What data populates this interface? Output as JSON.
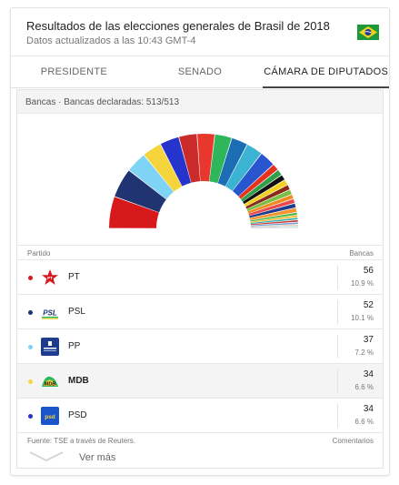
{
  "header": {
    "title": "Resultados de las elecciones generales de Brasil de 2018",
    "updated": "Datos actualizados a las 10:43 GMT-4"
  },
  "tabs": [
    {
      "label": "PRESIDENTE",
      "active": false
    },
    {
      "label": "SENADO",
      "active": false
    },
    {
      "label": "CÁMARA DE DIPUTADOS",
      "active": true
    }
  ],
  "section_label": "Bancas · Bancas declaradas: 513/513",
  "chart_data": {
    "type": "hemicycle",
    "total_seats": 513,
    "series": [
      {
        "seats": 56,
        "color": "#d7191c"
      },
      {
        "seats": 52,
        "color": "#1f3470"
      },
      {
        "seats": 37,
        "color": "#7fd3f4"
      },
      {
        "seats": 34,
        "color": "#f6d43b"
      },
      {
        "seats": 34,
        "color": "#2434cc"
      },
      {
        "seats": 32,
        "color": "#cc2b2b"
      },
      {
        "seats": 31,
        "color": "#e8382e"
      },
      {
        "seats": 30,
        "color": "#2fb55a"
      },
      {
        "seats": 29,
        "color": "#1b6eb4"
      },
      {
        "seats": 29,
        "color": "#3bb3d3"
      },
      {
        "seats": 28,
        "color": "#2956cf"
      },
      {
        "seats": 12,
        "color": "#e6311f"
      },
      {
        "seats": 11,
        "color": "#2f9f49"
      },
      {
        "seats": 10,
        "color": "#111111"
      },
      {
        "seats": 10,
        "color": "#f2d21f"
      },
      {
        "seats": 9,
        "color": "#8a2a19"
      },
      {
        "seats": 9,
        "color": "#77c043"
      },
      {
        "seats": 8,
        "color": "#f08a1e"
      },
      {
        "seats": 8,
        "color": "#e84a4a"
      },
      {
        "seats": 8,
        "color": "#1d3c8f"
      },
      {
        "seats": 8,
        "color": "#f49532"
      },
      {
        "seats": 5,
        "color": "#50b848"
      },
      {
        "seats": 4,
        "color": "#f3b61f"
      },
      {
        "seats": 4,
        "color": "#2aa6a6"
      },
      {
        "seats": 4,
        "color": "#c73a3a"
      },
      {
        "seats": 4,
        "color": "#7a9fd6"
      },
      {
        "seats": 2,
        "color": "#e08a4a"
      },
      {
        "seats": 2,
        "color": "#6bb3e0"
      },
      {
        "seats": 1,
        "color": "#8bc58b"
      },
      {
        "seats": 1,
        "color": "#a7a7a7"
      },
      {
        "seats": 1,
        "color": "#cc6699"
      }
    ]
  },
  "columns": {
    "party": "Partido",
    "seats": "Bancas"
  },
  "parties": [
    {
      "name": "PT",
      "seats": "56",
      "pct": "10.9 %",
      "color": "#d7191c",
      "icon": "pt-star-icon"
    },
    {
      "name": "PSL",
      "seats": "52",
      "pct": "10.1 %",
      "color": "#1f3470",
      "icon": "psl-logo-icon"
    },
    {
      "name": "PP",
      "seats": "37",
      "pct": "7.2 %",
      "color": "#7fd3f4",
      "icon": "pp-logo-icon"
    },
    {
      "name": "MDB",
      "seats": "34",
      "pct": "6.6 %",
      "color": "#f6d43b",
      "icon": "mdb-logo-icon"
    },
    {
      "name": "PSD",
      "seats": "34",
      "pct": "6.6 %",
      "color": "#2434cc",
      "icon": "psd-logo-icon"
    }
  ],
  "footer": {
    "source": "Fuente: TSE a través de Reuters.",
    "comments": "Comentarios"
  },
  "more_label": "Ver más",
  "flag_icon": "brazil-flag-icon"
}
